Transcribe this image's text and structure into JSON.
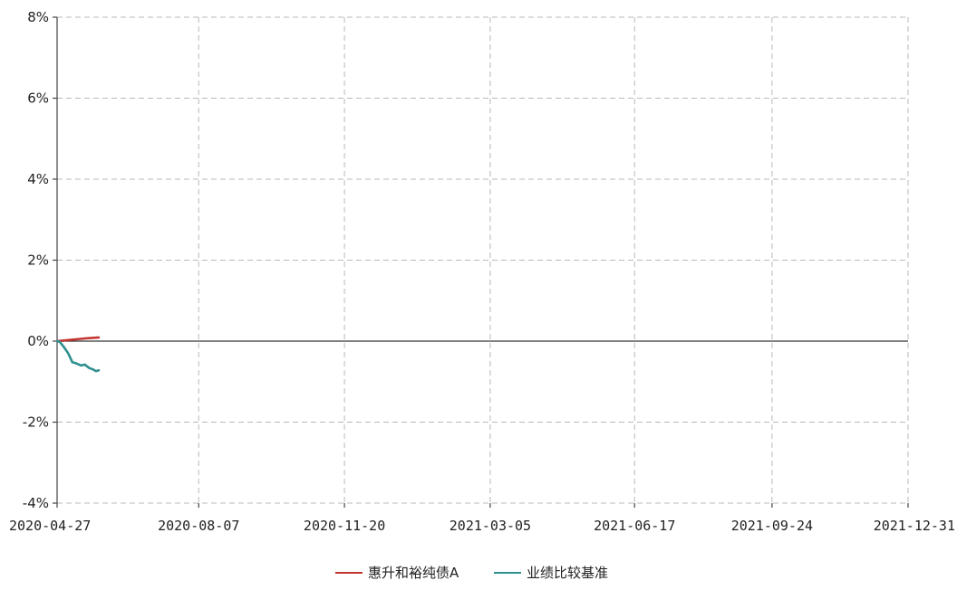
{
  "chart_data": {
    "type": "line",
    "title": "",
    "xlabel": "",
    "ylabel": "",
    "x_ticks": [
      "2020-04-27",
      "2020-08-07",
      "2020-11-20",
      "2021-03-05",
      "2021-06-17",
      "2021-09-24",
      "2021-12-31"
    ],
    "y_ticks": [
      "8%",
      "6%",
      "4%",
      "2%",
      "0%",
      "-2%",
      "-4%"
    ],
    "ylim": [
      -4,
      8
    ],
    "xlim": [
      "2020-04-27",
      "2021-12-31"
    ],
    "grid": true,
    "legend_position": "bottom-center",
    "series": [
      {
        "name": "惠升和裕纯债A",
        "color": "#c23531",
        "points": [
          {
            "x": "2020-04-27",
            "y": 0.0
          },
          {
            "x": "2020-04-30",
            "y": 0.01
          },
          {
            "x": "2020-05-06",
            "y": 0.03
          },
          {
            "x": "2020-05-12",
            "y": 0.05
          },
          {
            "x": "2020-05-18",
            "y": 0.07
          },
          {
            "x": "2020-05-22",
            "y": 0.08
          },
          {
            "x": "2020-05-27",
            "y": 0.09
          }
        ]
      },
      {
        "name": "业绩比较基准",
        "color": "#2f8f8f",
        "points": [
          {
            "x": "2020-04-27",
            "y": 0.0
          },
          {
            "x": "2020-04-29",
            "y": -0.02
          },
          {
            "x": "2020-05-02",
            "y": -0.15
          },
          {
            "x": "2020-05-05",
            "y": -0.3
          },
          {
            "x": "2020-05-08",
            "y": -0.52
          },
          {
            "x": "2020-05-11",
            "y": -0.55
          },
          {
            "x": "2020-05-14",
            "y": -0.6
          },
          {
            "x": "2020-05-17",
            "y": -0.58
          },
          {
            "x": "2020-05-20",
            "y": -0.66
          },
          {
            "x": "2020-05-23",
            "y": -0.7
          },
          {
            "x": "2020-05-25",
            "y": -0.74
          },
          {
            "x": "2020-05-27",
            "y": -0.72
          }
        ]
      }
    ]
  }
}
